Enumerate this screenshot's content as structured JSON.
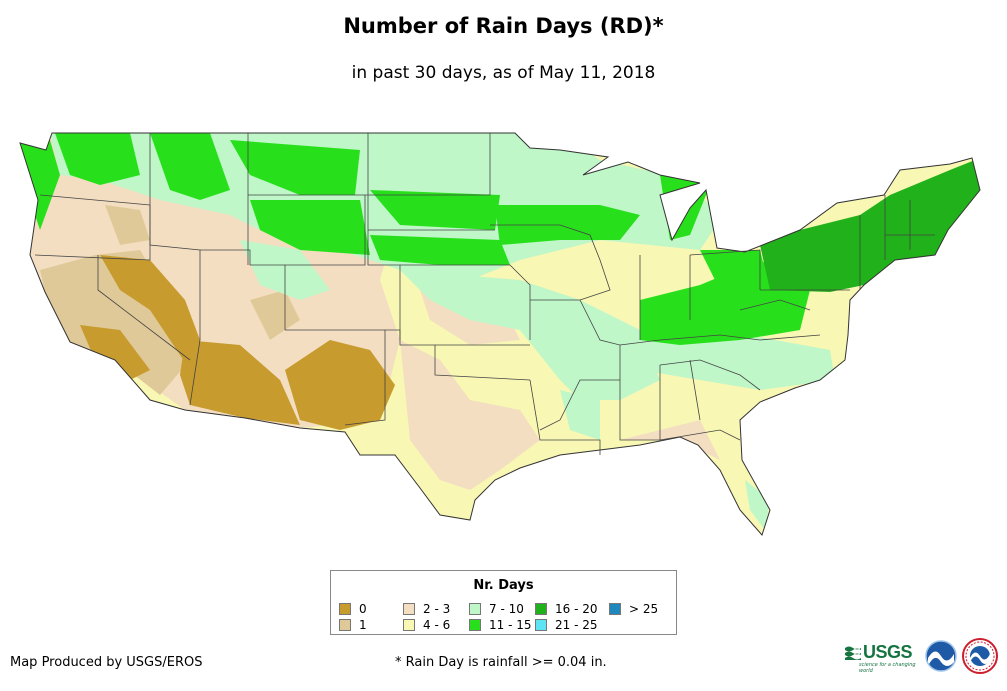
{
  "title": "Number of Rain Days (RD)*",
  "subtitle": "in past 30 days, as of May 11, 2018",
  "legend": {
    "title": "Nr. Days",
    "items": [
      {
        "label": "0",
        "color": "#c79b2e"
      },
      {
        "label": "1",
        "color": "#e0c998"
      },
      {
        "label": "2 - 3",
        "color": "#f3dec2"
      },
      {
        "label": "4 - 6",
        "color": "#f8f7b4"
      },
      {
        "label": "7 - 10",
        "color": "#bff7c8"
      },
      {
        "label": "11 - 15",
        "color": "#27e01b"
      },
      {
        "label": "16 - 20",
        "color": "#21b11a"
      },
      {
        "label": "21 - 25",
        "color": "#5ee3f5"
      },
      {
        "label": "> 25",
        "color": "#1e88bd"
      }
    ]
  },
  "credit": "Map Produced by USGS/EROS",
  "footnote": "* Rain Day is rainfall >= 0.04 in.",
  "logos": {
    "usgs_text": "USGS",
    "usgs_tagline": "science for a changing world",
    "icons": [
      "usgs-logo",
      "noaa-logo",
      "nws-logo"
    ]
  }
}
